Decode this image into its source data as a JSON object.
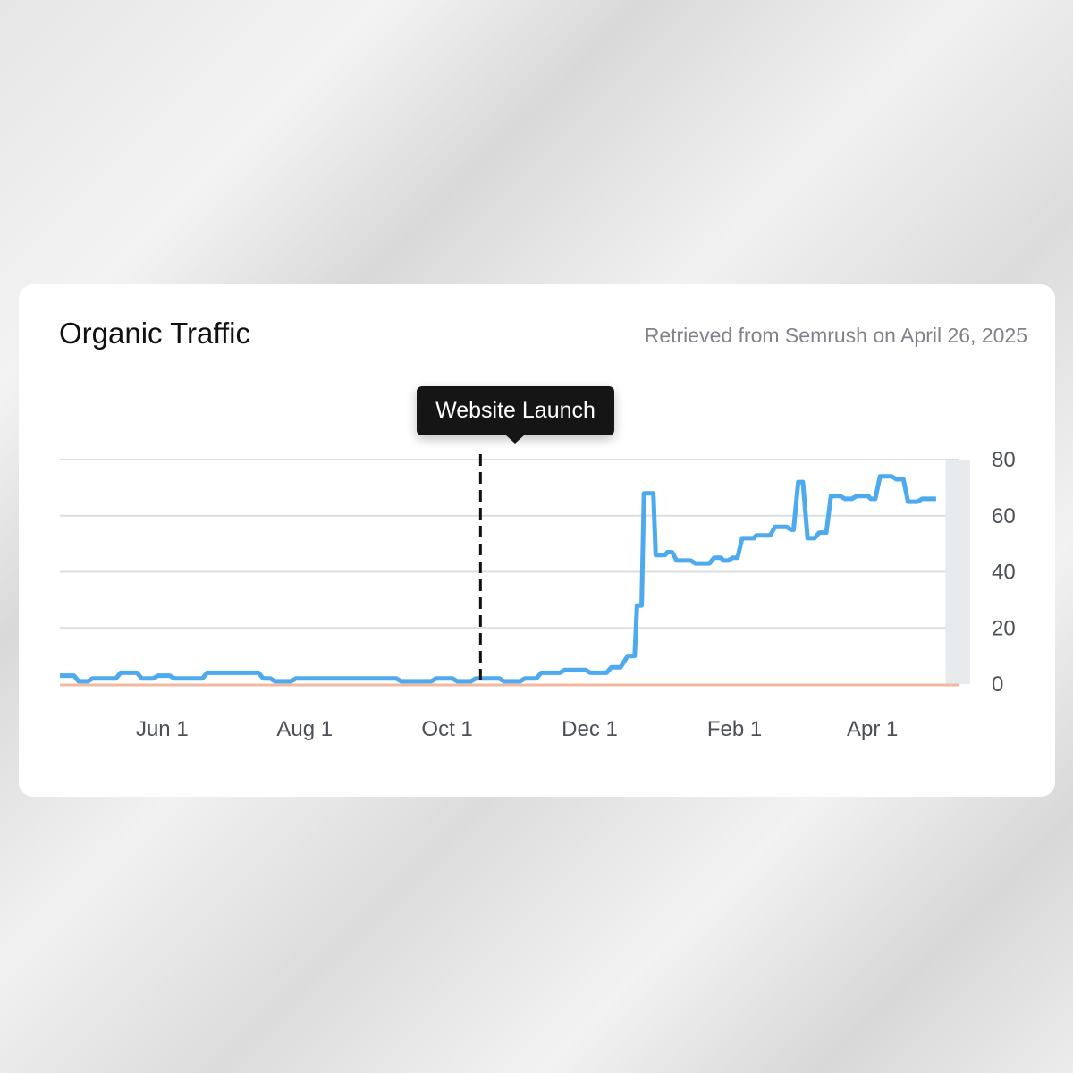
{
  "card": {
    "title": "Organic Traffic",
    "source": "Retrieved from Semrush on April 26, 2025"
  },
  "annotation": {
    "label": "Website Launch",
    "date": "2024-10-03"
  },
  "chart_data": {
    "type": "line",
    "title": "Organic Traffic",
    "xlabel": "",
    "ylabel": "",
    "xlim": [
      "2024-04-06",
      "2025-04-26"
    ],
    "ylim": [
      0,
      80
    ],
    "grid": true,
    "x_ticks": [
      {
        "date": "2024-06-01",
        "label": "Jun 1"
      },
      {
        "date": "2024-08-01",
        "label": "Aug 1"
      },
      {
        "date": "2024-10-01",
        "label": "Oct 1"
      },
      {
        "date": "2024-12-01",
        "label": "Dec 1"
      },
      {
        "date": "2025-02-01",
        "label": "Feb 1"
      },
      {
        "date": "2025-04-01",
        "label": "Apr 1"
      }
    ],
    "y_ticks": [
      0,
      20,
      40,
      60,
      80
    ],
    "colors": {
      "line": "#4daaee",
      "baseline": "#f2b8a0",
      "grid": "#dcdde3",
      "marker": "#111111",
      "shade": "#e8ebee"
    },
    "series": [
      {
        "x": [
          "2024-04-06",
          "2024-04-12",
          "2024-04-14",
          "2024-04-18",
          "2024-04-20",
          "2024-04-30",
          "2024-05-02",
          "2024-05-09",
          "2024-05-11",
          "2024-05-16",
          "2024-05-18",
          "2024-05-23",
          "2024-05-25",
          "2024-06-06",
          "2024-06-08",
          "2024-06-30",
          "2024-07-02",
          "2024-07-05",
          "2024-07-07",
          "2024-07-14",
          "2024-07-16",
          "2024-08-28",
          "2024-08-30",
          "2024-09-12",
          "2024-09-14",
          "2024-09-21",
          "2024-09-23",
          "2024-09-29",
          "2024-10-01",
          "2024-10-11",
          "2024-10-13",
          "2024-10-20",
          "2024-10-22",
          "2024-10-27",
          "2024-10-29",
          "2024-11-06",
          "2024-11-08",
          "2024-11-17",
          "2024-11-19",
          "2024-11-26",
          "2024-11-28",
          "2024-12-02",
          "2024-12-05",
          "2024-12-08",
          "2024-12-09",
          "2024-12-11",
          "2024-12-12",
          "2024-12-16",
          "2024-12-17",
          "2024-12-21",
          "2024-12-22",
          "2024-12-24",
          "2024-12-26",
          "2025-01-01",
          "2025-01-03",
          "2025-01-09",
          "2025-01-11",
          "2025-01-14",
          "2025-01-15",
          "2025-01-17",
          "2025-01-19",
          "2025-01-21",
          "2025-01-23",
          "2025-01-28",
          "2025-01-29",
          "2025-02-04",
          "2025-02-06",
          "2025-02-11",
          "2025-02-13",
          "2025-02-14",
          "2025-02-16",
          "2025-02-18",
          "2025-02-20",
          "2025-02-23",
          "2025-02-25",
          "2025-02-28",
          "2025-03-02",
          "2025-03-06",
          "2025-03-08",
          "2025-03-11",
          "2025-03-13",
          "2025-03-18",
          "2025-03-19",
          "2025-03-21",
          "2025-03-23",
          "2025-03-28",
          "2025-03-30",
          "2025-04-02",
          "2025-04-04",
          "2025-04-08",
          "2025-04-10",
          "2025-04-16"
        ],
        "y": [
          3,
          3,
          1,
          1,
          2,
          2,
          4,
          4,
          2,
          2,
          3,
          3,
          2,
          2,
          4,
          4,
          2,
          2,
          1,
          1,
          2,
          2,
          1,
          1,
          2,
          2,
          1,
          1,
          2,
          2,
          1,
          1,
          2,
          2,
          4,
          4,
          5,
          5,
          4,
          4,
          6,
          6,
          10,
          10,
          28,
          28,
          68,
          68,
          46,
          46,
          47,
          47,
          44,
          44,
          43,
          43,
          45,
          45,
          44,
          44,
          45,
          45,
          52,
          52,
          53,
          53,
          56,
          56,
          55,
          55,
          72,
          72,
          52,
          52,
          54,
          54,
          67,
          67,
          66,
          66,
          67,
          67,
          66,
          66,
          74,
          74,
          73,
          73,
          65,
          65,
          66,
          66
        ]
      }
    ]
  }
}
